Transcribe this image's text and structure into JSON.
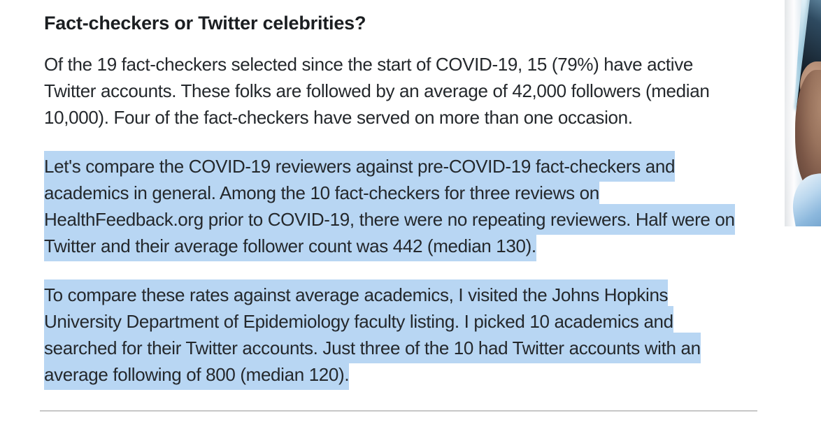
{
  "article": {
    "heading": "Fact-checkers or Twitter celebrities?",
    "paragraphs": [
      {
        "text": "Of the 19 fact-checkers selected since the start of COVID-19, 15 (79%) have active Twitter accounts. These folks are followed by an average of 42,000 followers (median 10,000). Four of the fact-checkers have served on more than one occasion.",
        "selected": false
      },
      {
        "text": "Let's compare the COVID-19 reviewers against pre-COVID-19 fact-checkers and academics in general. Among the 10 fact-checkers for three reviews on HealthFeedback.org prior to COVID-19, there were no repeating reviewers. Half were on Twitter and their average follower count was 442 (median 130).",
        "selected": true
      },
      {
        "text": "To compare these rates against average academics, I visited the Johns Hopkins University Department of Epidemiology faculty listing. I picked 10 academics and searched for their Twitter accounts. Just three of the 10 had Twitter accounts with an average following of 800 (median 120).",
        "selected": true
      }
    ]
  },
  "photo": {
    "description": "Cropped photo fragment at right edge: hand holding a smartphone, light blue shirt sleeve below"
  },
  "theme": {
    "selection_color": "#b8d6f3",
    "text_color": "#24282c",
    "heading_color": "#1b1e21",
    "divider_color": "#c7c7c7",
    "page_background": "#ffffff"
  }
}
